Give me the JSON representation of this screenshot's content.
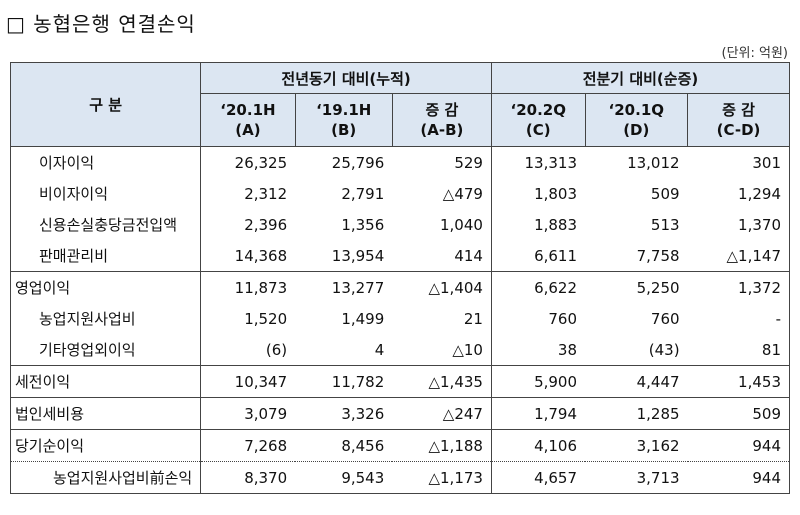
{
  "header": {
    "title": "□ 농협은행 연결손익",
    "unit": "(단위: 억원)"
  },
  "table": {
    "corner": "구 분",
    "groups": [
      "전년동기 대비(누적)",
      "전분기 대비(순증)"
    ],
    "columns": [
      {
        "period": "‘20.1H",
        "code": "(A)"
      },
      {
        "period": "‘19.1H",
        "code": "(B)"
      },
      {
        "period": "증 감",
        "code": "(A-B)"
      },
      {
        "period": "‘20.2Q",
        "code": "(C)"
      },
      {
        "period": "‘20.1Q",
        "code": "(D)"
      },
      {
        "period": "증 감",
        "code": "(C-D)"
      }
    ],
    "rows": [
      {
        "label": "이자이익",
        "values": [
          "26,325",
          "25,796",
          "529",
          "13,313",
          "13,012",
          "301"
        ]
      },
      {
        "label": "비이자이익",
        "values": [
          "2,312",
          "2,791",
          "△479",
          "1,803",
          "509",
          "1,294"
        ]
      },
      {
        "label": "신용손실충당금전입액",
        "values": [
          "2,396",
          "1,356",
          "1,040",
          "1,883",
          "513",
          "1,370"
        ]
      },
      {
        "label": "판매관리비",
        "values": [
          "14,368",
          "13,954",
          "414",
          "6,611",
          "7,758",
          "△1,147"
        ]
      },
      {
        "label": "영업이익",
        "values": [
          "11,873",
          "13,277",
          "△1,404",
          "6,622",
          "5,250",
          "1,372"
        ]
      },
      {
        "label": "농업지원사업비",
        "values": [
          "1,520",
          "1,499",
          "21",
          "760",
          "760",
          "-"
        ]
      },
      {
        "label": "기타영업외이익",
        "values": [
          "(6)",
          "4",
          "△10",
          "38",
          "(43)",
          "81"
        ]
      },
      {
        "label": "세전이익",
        "values": [
          "10,347",
          "11,782",
          "△1,435",
          "5,900",
          "4,447",
          "1,453"
        ]
      },
      {
        "label": "법인세비용",
        "values": [
          "3,079",
          "3,326",
          "△247",
          "1,794",
          "1,285",
          "509"
        ]
      },
      {
        "label": "당기순이익",
        "values": [
          "7,268",
          "8,456",
          "△1,188",
          "4,106",
          "3,162",
          "944"
        ]
      },
      {
        "label": "농업지원사업비前손익",
        "values": [
          "8,370",
          "9,543",
          "△1,173",
          "4,657",
          "3,713",
          "944"
        ]
      }
    ]
  }
}
